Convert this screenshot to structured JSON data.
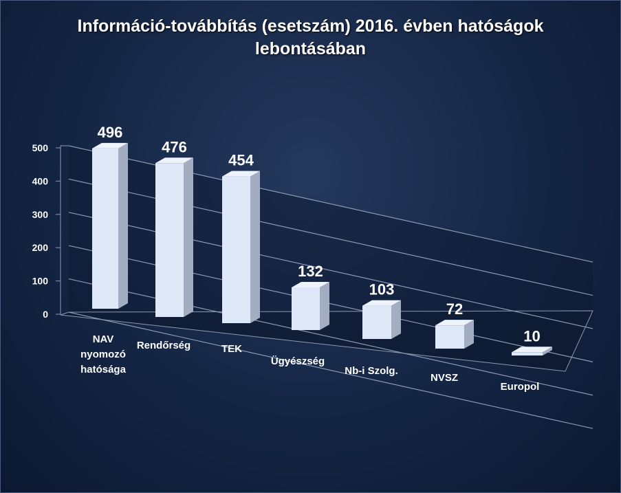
{
  "chart_data": {
    "type": "bar",
    "title": "Információ-továbbítás (esetszám) 2016. évben hatóságok lebontásában",
    "xlabel": "",
    "ylabel": "",
    "ylim": [
      0,
      500
    ],
    "yticks": [
      "0",
      "100",
      "200",
      "300",
      "400",
      "500"
    ],
    "categories": [
      "NAV nyomozó hatósága",
      "Rendőrség",
      "TEK",
      "Ügyészség",
      "Nb-i Szolg.",
      "NVSZ",
      "Europol"
    ],
    "category_lines": [
      [
        "NAV",
        "nyomozó",
        "hatósága"
      ],
      [
        "Rendőrség"
      ],
      [
        "TEK"
      ],
      [
        "Ügyészség"
      ],
      [
        "Nb-i Szolg."
      ],
      [
        "NVSZ"
      ],
      [
        "Europol"
      ]
    ],
    "values": [
      496,
      476,
      454,
      132,
      103,
      72,
      10
    ],
    "data_labels": [
      "496",
      "476",
      "454",
      "132",
      "103",
      "72",
      "10"
    ],
    "grid": true,
    "style": "3d-perspective",
    "colors": {
      "bar_front": "#dfe8f8",
      "bar_side": "#9aa6bc",
      "bar_top": "#eef3fb",
      "grid": "#8c99b3",
      "text": "#ffffff"
    }
  }
}
